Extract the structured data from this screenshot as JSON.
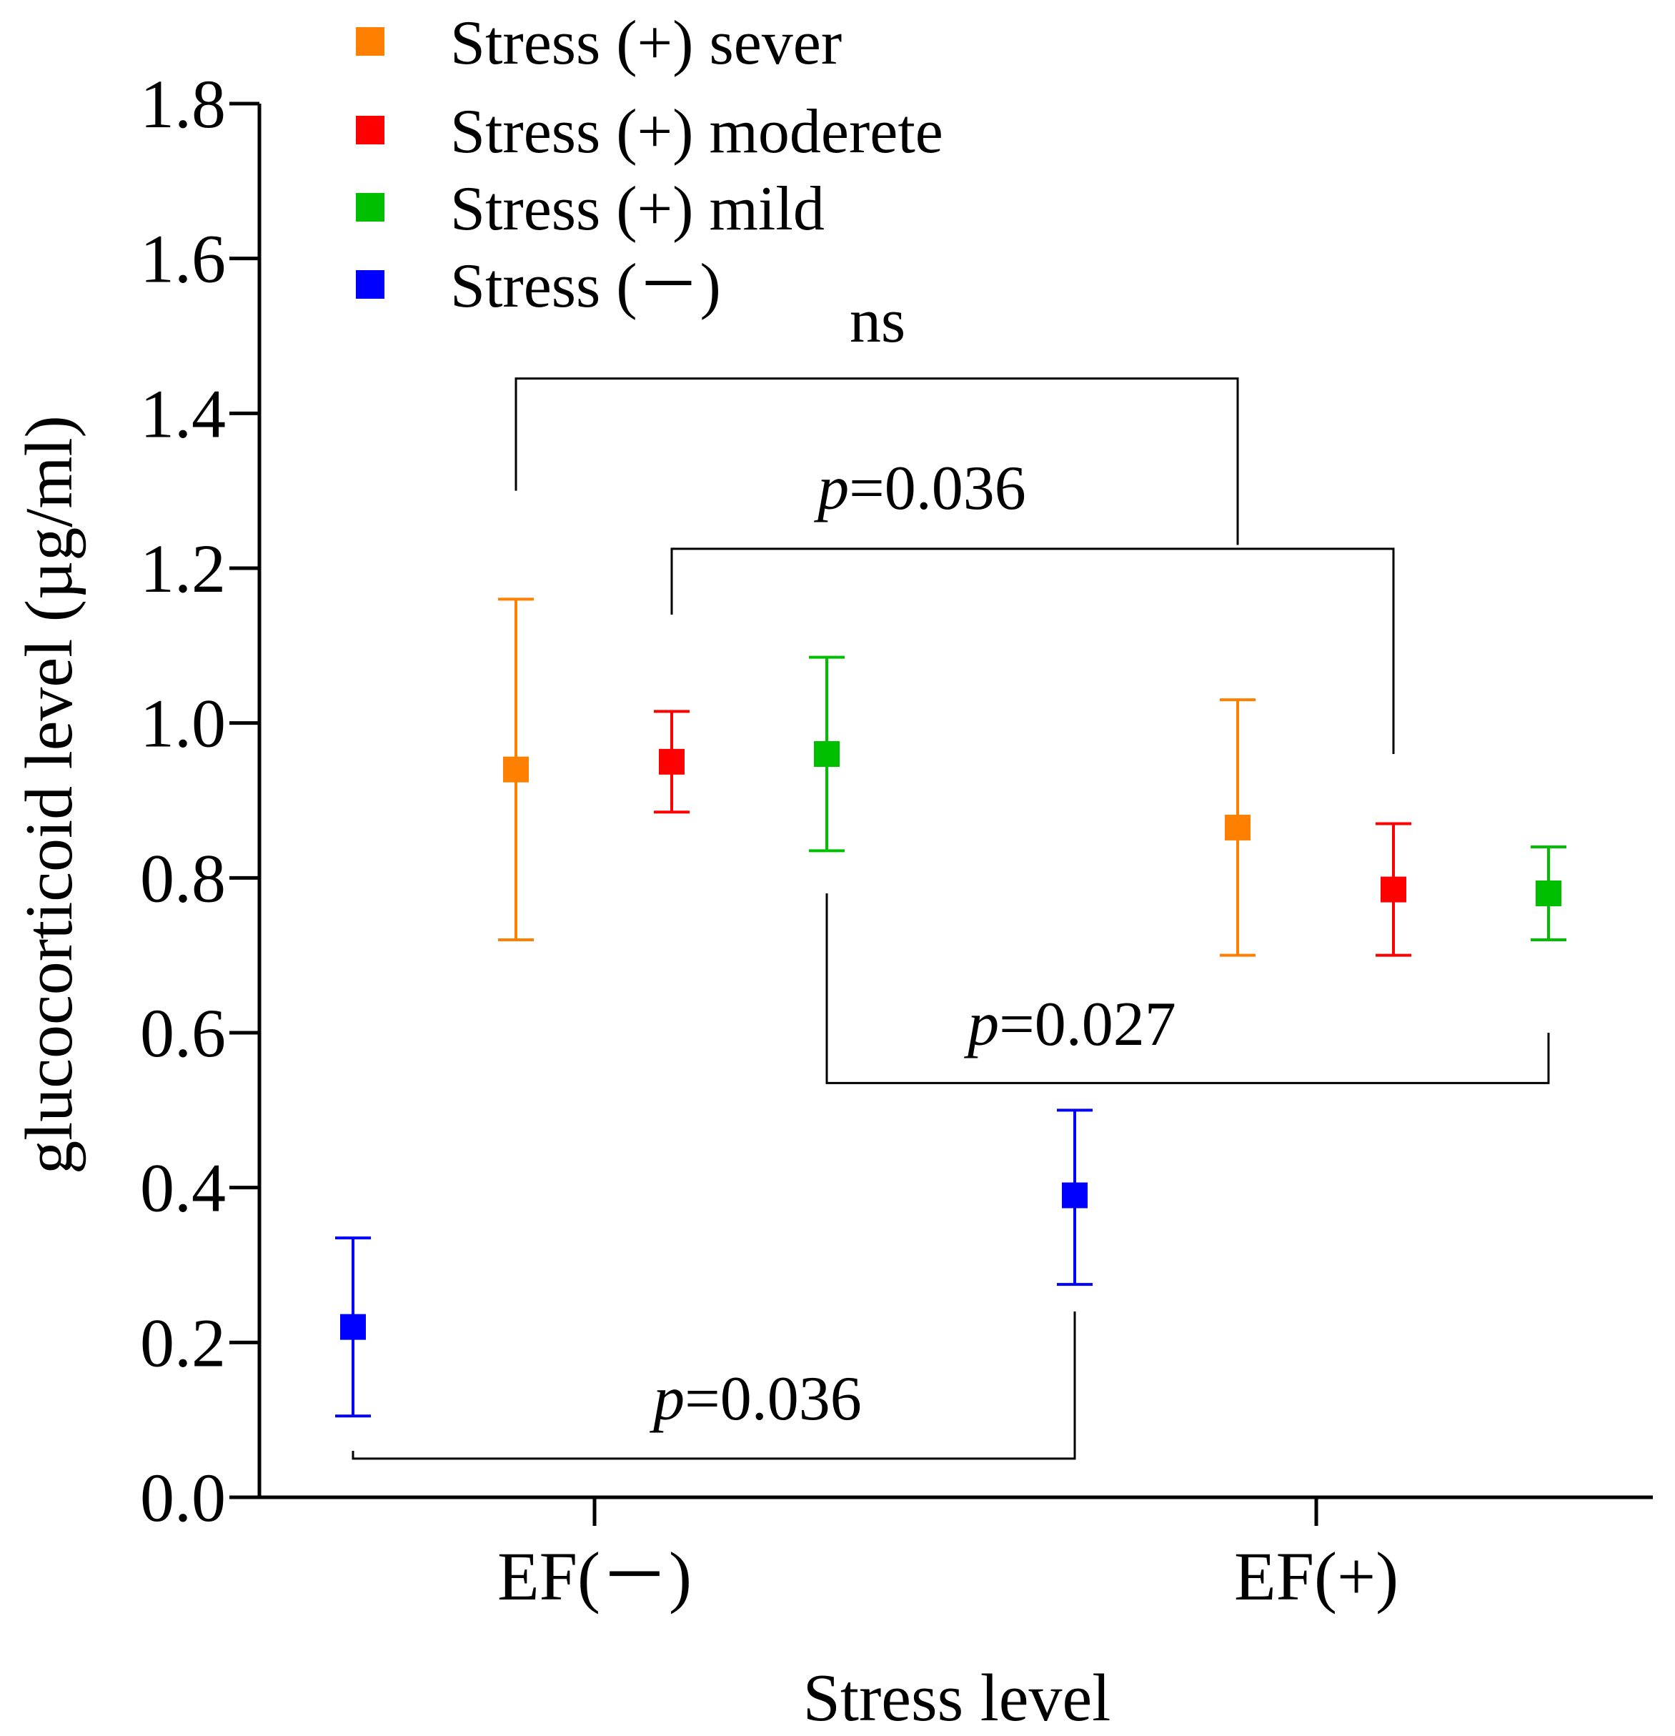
{
  "chart_data": {
    "type": "scatter",
    "title": "",
    "xlabel": "Stress level",
    "ylabel": "glucocorticoid level (µg/ml)",
    "ylim": [
      0.0,
      1.8
    ],
    "yticks": [
      "0.0",
      "0.2",
      "0.4",
      "0.6",
      "0.8",
      "1.0",
      "1.2",
      "1.4",
      "1.6",
      "1.8"
    ],
    "categories": [
      "EF(－)",
      "EF(+)"
    ],
    "legend_position": "top-left",
    "series": [
      {
        "name": "Stress (+) sever",
        "color": "#ff8000",
        "points": [
          {
            "category": "EF(－)",
            "mean": 0.94,
            "lower": 0.72,
            "upper": 1.16
          },
          {
            "category": "EF(+)",
            "mean": 0.865,
            "lower": 0.7,
            "upper": 1.03
          }
        ]
      },
      {
        "name": "Stress (+) moderete",
        "color": "#ff0000",
        "points": [
          {
            "category": "EF(－)",
            "mean": 0.95,
            "lower": 0.885,
            "upper": 1.015
          },
          {
            "category": "EF(+)",
            "mean": 0.785,
            "lower": 0.7,
            "upper": 0.87
          }
        ]
      },
      {
        "name": "Stress (+) mild",
        "color": "#00bf00",
        "points": [
          {
            "category": "EF(－)",
            "mean": 0.96,
            "lower": 0.835,
            "upper": 1.085
          },
          {
            "category": "EF(+)",
            "mean": 0.78,
            "lower": 0.72,
            "upper": 0.84
          }
        ]
      },
      {
        "name": "Stress (－)",
        "color": "#0000ff",
        "points": [
          {
            "category": "EF(－)",
            "mean": 0.22,
            "lower": 0.105,
            "upper": 0.335
          },
          {
            "category": "EF(+)",
            "mean": 0.39,
            "lower": 0.275,
            "upper": 0.5
          }
        ]
      }
    ],
    "annotations": [
      {
        "prefix": "",
        "text": "ns",
        "from_series": "Stress (+) sever",
        "to_series": "Stress (+) sever",
        "y_level": 1.445,
        "left_end": 1.3,
        "right_end": 1.23
      },
      {
        "prefix": "p",
        "text": "=0.036",
        "from_series": "Stress (+) moderete",
        "to_series": "Stress (+) moderete",
        "y_level": 1.225,
        "left_end": 1.14,
        "right_end": 0.96
      },
      {
        "prefix": "p",
        "text": "=0.027",
        "from_series": "Stress (+) mild",
        "to_series": "Stress (+) mild",
        "y_level": 0.535,
        "left_end": 0.78,
        "right_end": 0.6
      },
      {
        "prefix": "p",
        "text": "=0.036",
        "from_series": "Stress (－)",
        "to_series": "Stress (－)",
        "y_level": 0.05,
        "left_end": 0.06,
        "right_end": 0.24
      }
    ]
  }
}
